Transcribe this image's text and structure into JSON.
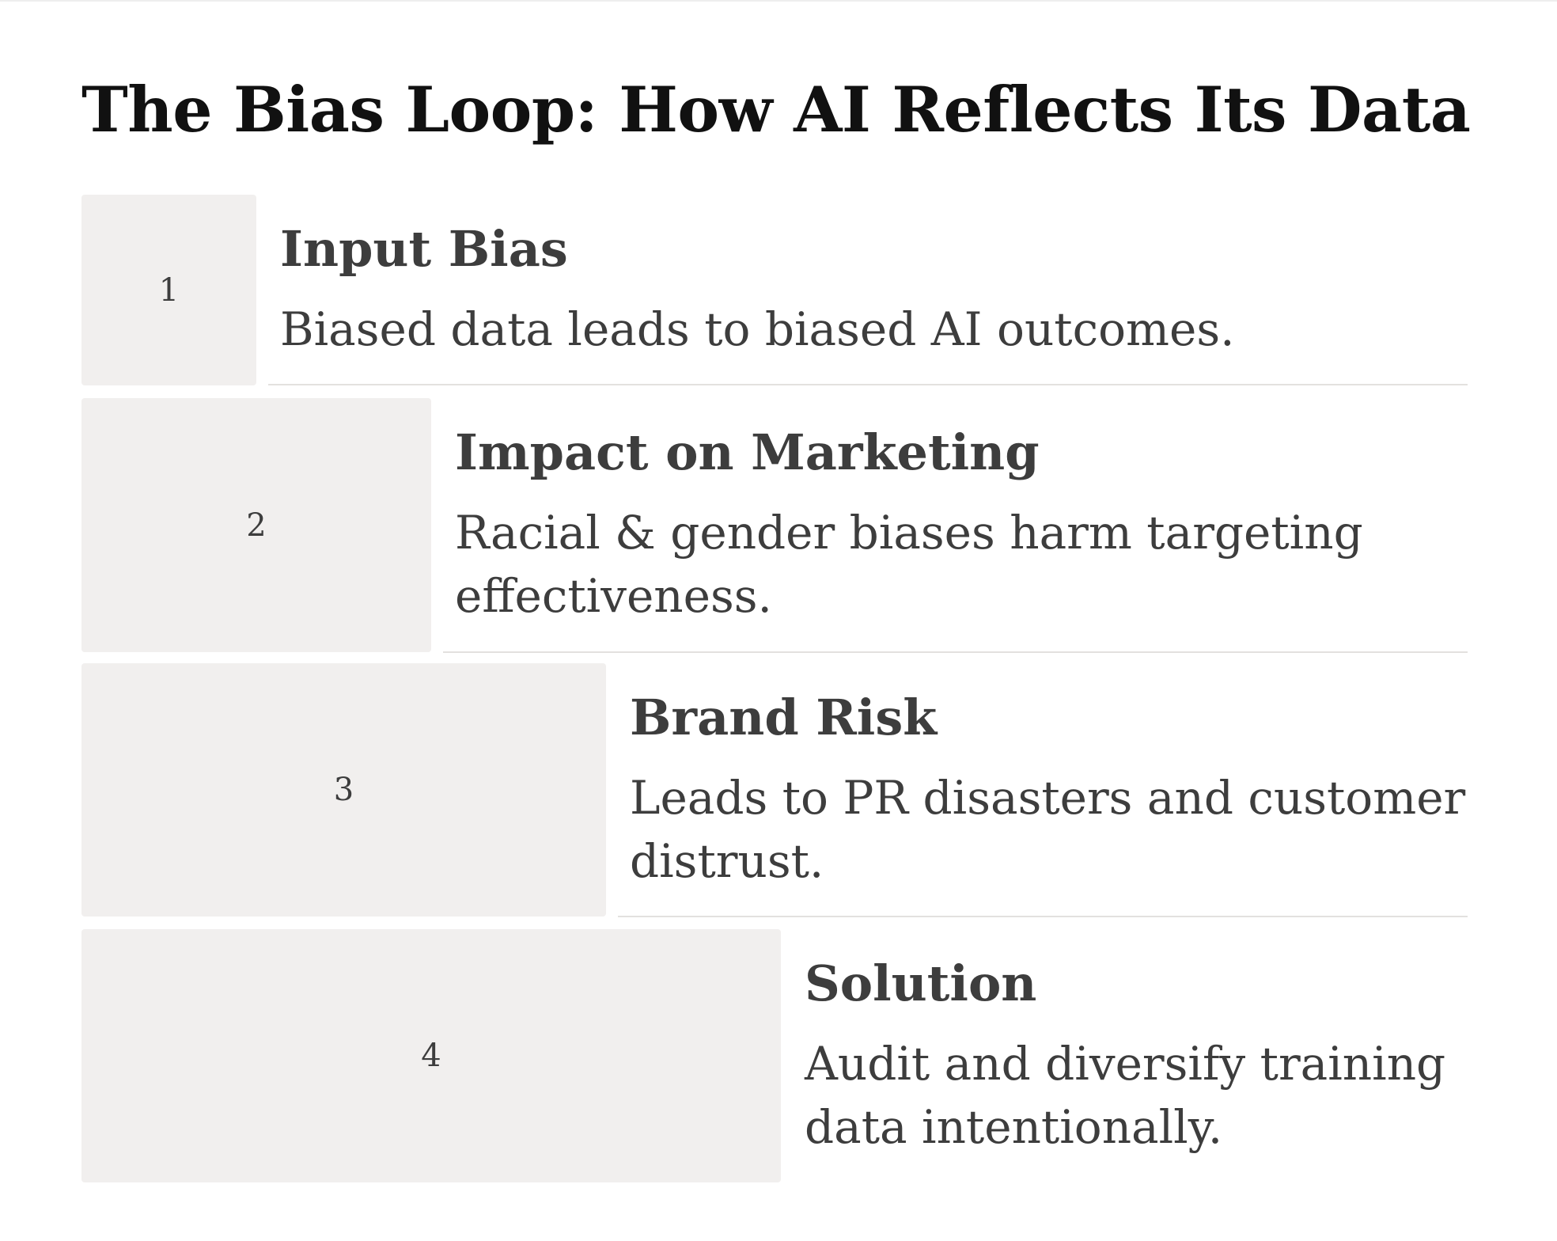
{
  "title": "The Bias Loop: How AI Reflects Its Data",
  "steps": [
    {
      "number": "1",
      "heading": "Input Bias",
      "description": "Biased data leads to biased AI outcomes."
    },
    {
      "number": "2",
      "heading": "Impact on Marketing",
      "description": "Racial & gender biases harm targeting effectiveness."
    },
    {
      "number": "3",
      "heading": "Brand Risk",
      "description": "Leads to PR disasters and customer distrust."
    },
    {
      "number": "4",
      "heading": "Solution",
      "description": "Audit and diversify training data intentionally."
    }
  ]
}
